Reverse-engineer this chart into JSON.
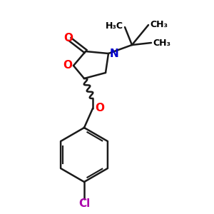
{
  "background_color": "#ffffff",
  "O_color": "#ff0000",
  "N_color": "#0000cc",
  "Cl_color": "#aa00aa",
  "bond_color": "#1a1a1a",
  "bond_width": 1.8,
  "font_size_atom": 11,
  "font_size_methyl": 9,
  "ring_O_label": "O",
  "carbonyl_O_label": "O",
  "N_label": "N",
  "ether_O_label": "O",
  "Cl_label": "Cl",
  "H3C_label": "H₃C",
  "CH3_label_1": "CH₃",
  "CH3_label_2": "CH₃"
}
